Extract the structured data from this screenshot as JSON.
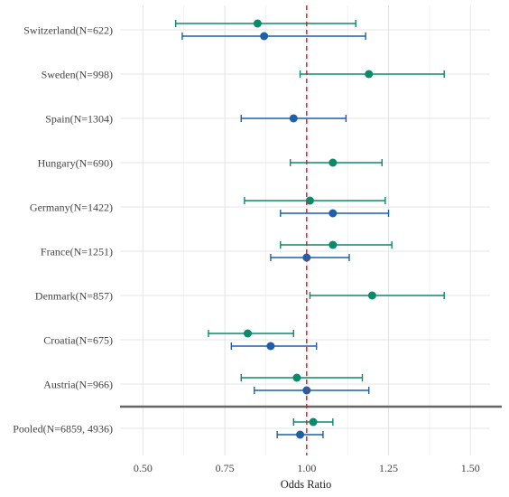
{
  "chart_data": {
    "type": "forest",
    "xlabel": "Odds Ratio",
    "xlim": [
      0.43,
      1.56
    ],
    "x_ticks": [
      0.5,
      0.75,
      1.0,
      1.25,
      1.5
    ],
    "x_tick_labels": [
      "0.50",
      "0.75",
      "1.00",
      "1.25",
      "1.50"
    ],
    "reference_line": 1.0,
    "grid": true,
    "categories": [
      "Switzerland(N=622)",
      "Sweden(N=998)",
      "Spain(N=1304)",
      "Hungary(N=690)",
      "Germany(N=1422)",
      "France(N=1251)",
      "Denmark(N=857)",
      "Croatia(N=675)",
      "Austria(N=966)",
      "Pooled(N=6859, 4936)"
    ],
    "series": [
      {
        "color": "#0a8a6a",
        "estimates": [
          0.85,
          1.19,
          null,
          1.08,
          1.01,
          1.08,
          1.2,
          0.82,
          0.97,
          1.02
        ],
        "lower": [
          0.6,
          0.98,
          null,
          0.95,
          0.81,
          0.92,
          1.01,
          0.7,
          0.8,
          0.96
        ],
        "upper": [
          1.15,
          1.42,
          null,
          1.23,
          1.24,
          1.26,
          1.42,
          0.96,
          1.17,
          1.08
        ]
      },
      {
        "color": "#1f5fa8",
        "estimates": [
          0.87,
          null,
          0.96,
          null,
          1.08,
          1.0,
          null,
          0.89,
          1.0,
          0.98
        ],
        "lower": [
          0.62,
          null,
          0.8,
          null,
          0.92,
          0.89,
          null,
          0.77,
          0.84,
          0.91
        ],
        "upper": [
          1.18,
          null,
          1.12,
          null,
          1.25,
          1.13,
          null,
          1.03,
          1.19,
          1.05
        ]
      }
    ]
  }
}
